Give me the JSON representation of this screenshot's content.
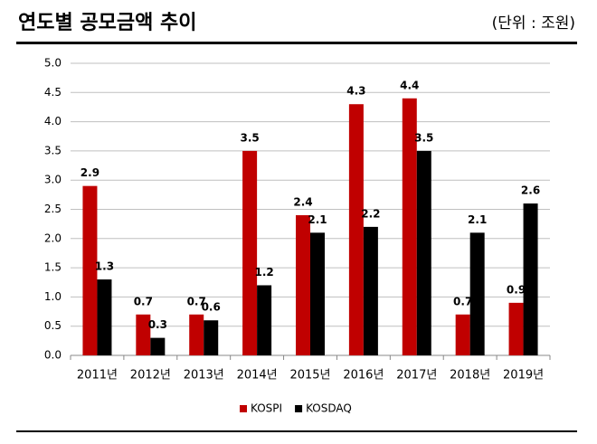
{
  "chart_data": {
    "type": "bar",
    "title": "연도별 공모금액 추이",
    "subtitle": "(단위 : 조원)",
    "categories": [
      "2011년",
      "2012년",
      "2013년",
      "2014년",
      "2015년",
      "2016년",
      "2017년",
      "2018년",
      "2019년"
    ],
    "series": [
      {
        "name": "KOSPI",
        "color": "#c00000",
        "values": [
          2.9,
          0.7,
          0.7,
          3.5,
          2.4,
          4.3,
          4.4,
          0.7,
          0.9
        ]
      },
      {
        "name": "KOSDAQ",
        "color": "#000000",
        "values": [
          1.3,
          0.3,
          0.6,
          1.2,
          2.1,
          2.2,
          3.5,
          2.1,
          2.6
        ]
      }
    ],
    "ylim": [
      0,
      5
    ],
    "yticks": [
      {
        "value": 0,
        "label": "0.0"
      },
      {
        "value": 0.5,
        "label": "0.5"
      },
      {
        "value": 1,
        "label": "1.0"
      },
      {
        "value": 1.5,
        "label": "1.5"
      },
      {
        "value": 2,
        "label": "2.0"
      },
      {
        "value": 2.5,
        "label": "2.5"
      },
      {
        "value": 3,
        "label": "3.0"
      },
      {
        "value": 3.5,
        "label": "3.5"
      },
      {
        "value": 4,
        "label": "4.0"
      },
      {
        "value": 4.5,
        "label": "4.5"
      },
      {
        "value": 5,
        "label": "5.0"
      }
    ],
    "grid": true,
    "legend": "bottom"
  }
}
